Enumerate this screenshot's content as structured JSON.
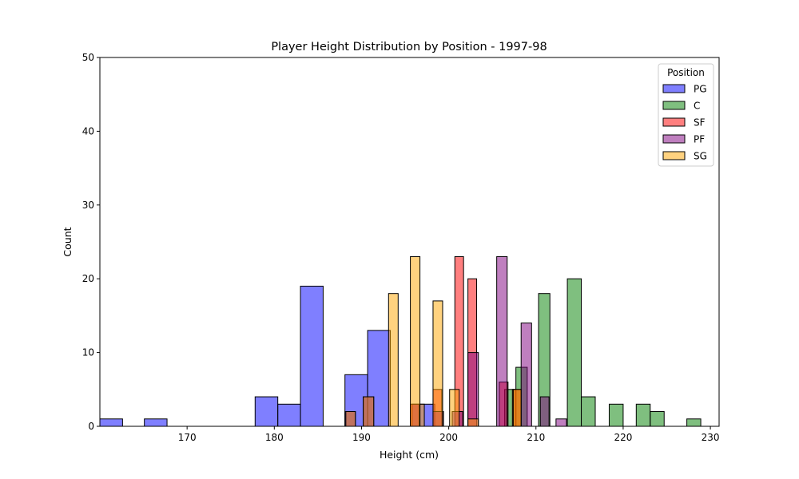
{
  "chart_data": {
    "type": "histogram",
    "title": "Player Height Distribution by Position - 1997-98",
    "xlabel": "Height (cm)",
    "ylabel": "Count",
    "xlim": [
      160,
      231
    ],
    "ylim": [
      0,
      50
    ],
    "xticks": [
      170,
      180,
      190,
      200,
      210,
      220,
      230
    ],
    "yticks": [
      0,
      10,
      20,
      30,
      40,
      50
    ],
    "grid": false,
    "legend": {
      "title": "Position",
      "placement": "top-right"
    },
    "series": [
      {
        "name": "PG",
        "color": "#0000ff",
        "bins": [
          {
            "x0": 160.0,
            "x1": 162.6,
            "count": 1
          },
          {
            "x0": 165.1,
            "x1": 167.7,
            "count": 1
          },
          {
            "x0": 177.8,
            "x1": 180.4,
            "count": 4
          },
          {
            "x0": 180.4,
            "x1": 183.0,
            "count": 3
          },
          {
            "x0": 183.0,
            "x1": 185.6,
            "count": 19
          },
          {
            "x0": 188.1,
            "x1": 190.7,
            "count": 7
          },
          {
            "x0": 190.7,
            "x1": 193.3,
            "count": 13
          },
          {
            "x0": 195.8,
            "x1": 198.4,
            "count": 3
          }
        ]
      },
      {
        "name": "C",
        "color": "#008000",
        "bins": [
          {
            "x0": 206.4,
            "x1": 207.7,
            "count": 5
          },
          {
            "x0": 207.7,
            "x1": 209.0,
            "count": 8
          },
          {
            "x0": 210.3,
            "x1": 211.6,
            "count": 18
          },
          {
            "x0": 213.6,
            "x1": 215.2,
            "count": 20
          },
          {
            "x0": 215.2,
            "x1": 216.8,
            "count": 4
          },
          {
            "x0": 218.4,
            "x1": 220.0,
            "count": 3
          },
          {
            "x0": 221.5,
            "x1": 223.1,
            "count": 3
          },
          {
            "x0": 223.1,
            "x1": 224.7,
            "count": 2
          },
          {
            "x0": 227.3,
            "x1": 228.9,
            "count": 1
          }
        ]
      },
      {
        "name": "SF",
        "color": "#ff0000",
        "bins": [
          {
            "x0": 195.6,
            "x1": 196.6,
            "count": 3
          },
          {
            "x0": 198.2,
            "x1": 199.2,
            "count": 5
          },
          {
            "x0": 200.7,
            "x1": 201.7,
            "count": 23
          },
          {
            "x0": 202.2,
            "x1": 203.2,
            "count": 20
          },
          {
            "x0": 205.8,
            "x1": 206.8,
            "count": 6
          },
          {
            "x0": 207.3,
            "x1": 208.3,
            "count": 5
          }
        ]
      },
      {
        "name": "PF",
        "color": "#800080",
        "bins": [
          {
            "x0": 188.1,
            "x1": 189.3,
            "count": 2
          },
          {
            "x0": 190.2,
            "x1": 191.4,
            "count": 4
          },
          {
            "x0": 198.2,
            "x1": 199.4,
            "count": 2
          },
          {
            "x0": 200.4,
            "x1": 201.6,
            "count": 2
          },
          {
            "x0": 202.2,
            "x1": 203.4,
            "count": 10
          },
          {
            "x0": 205.5,
            "x1": 206.7,
            "count": 23
          },
          {
            "x0": 208.3,
            "x1": 209.5,
            "count": 14
          },
          {
            "x0": 210.5,
            "x1": 211.5,
            "count": 4
          },
          {
            "x0": 212.3,
            "x1": 213.5,
            "count": 1
          }
        ]
      },
      {
        "name": "SG",
        "color": "#ffa500",
        "bins": [
          {
            "x0": 188.2,
            "x1": 189.3,
            "count": 2
          },
          {
            "x0": 190.2,
            "x1": 191.4,
            "count": 4
          },
          {
            "x0": 193.1,
            "x1": 194.2,
            "count": 18
          },
          {
            "x0": 195.6,
            "x1": 196.7,
            "count": 23
          },
          {
            "x0": 196.7,
            "x1": 197.2,
            "count": 3
          },
          {
            "x0": 198.2,
            "x1": 199.3,
            "count": 17
          },
          {
            "x0": 200.1,
            "x1": 201.2,
            "count": 5
          },
          {
            "x0": 202.2,
            "x1": 203.4,
            "count": 1
          },
          {
            "x0": 207.4,
            "x1": 208.3,
            "count": 5
          }
        ]
      }
    ]
  }
}
